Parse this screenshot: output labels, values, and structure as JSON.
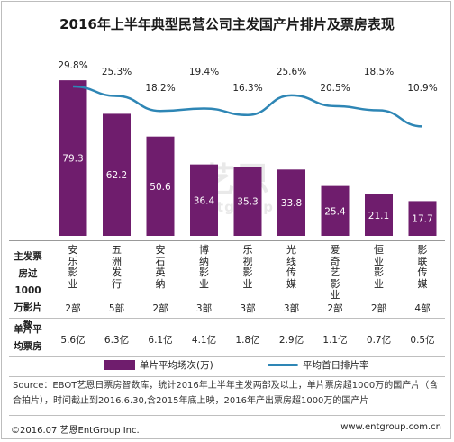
{
  "title": "2016年上半年典型民营公司主发国产片排片及票房表现",
  "watermark": {
    "main": "艺恩",
    "sub": "entgroup"
  },
  "row_labels": {
    "company": "主发票房过1000万影片数",
    "gross": "单片平均票房"
  },
  "legend": {
    "bar": "单片平均场次(万)",
    "line": "平均首日排片率"
  },
  "source": "Source：EBOT艺恩日票房智数库，统计2016年上半年主发两部及以上，单片票房超1000万的国产片（含合拍片），时间截止到2016.6.30,含2015年底上映，2016年产出票房超1000万的国产片",
  "footer": {
    "left": "©2016.07 艺恩EntGroup Inc.",
    "right": "www.entgroup.com.cn"
  },
  "colors": {
    "bar": "#6f1d6d",
    "line": "#2e86b5"
  },
  "chart_data": {
    "type": "bar",
    "categories": [
      "安乐影业",
      "五洲发行",
      "安石英纳",
      "博纳影业",
      "乐视影业",
      "光线传媒",
      "爱奇艺影业",
      "恒业影业",
      "影联传媒"
    ],
    "film_counts": [
      "2部",
      "5部",
      "2部",
      "3部",
      "3部",
      "3部",
      "2部",
      "2部",
      "4部"
    ],
    "avg_gross": [
      "5.6亿",
      "6.3亿",
      "6.1亿",
      "4.1亿",
      "1.8亿",
      "2.9亿",
      "1.1亿",
      "0.7亿",
      "0.5亿"
    ],
    "series": [
      {
        "name": "单片平均场次(万)",
        "type": "bar",
        "values": [
          79.3,
          62.2,
          50.6,
          36.4,
          35.3,
          33.8,
          25.4,
          21.1,
          17.7
        ]
      },
      {
        "name": "平均首日排片率",
        "type": "line",
        "values": [
          29.8,
          25.3,
          18.2,
          19.4,
          16.3,
          25.6,
          20.5,
          18.5,
          10.9
        ],
        "labels": [
          "29.8%",
          "25.3%",
          "18.2%",
          "19.4%",
          "16.3%",
          "25.6%",
          "20.5%",
          "18.5%",
          "10.9%"
        ]
      }
    ]
  }
}
